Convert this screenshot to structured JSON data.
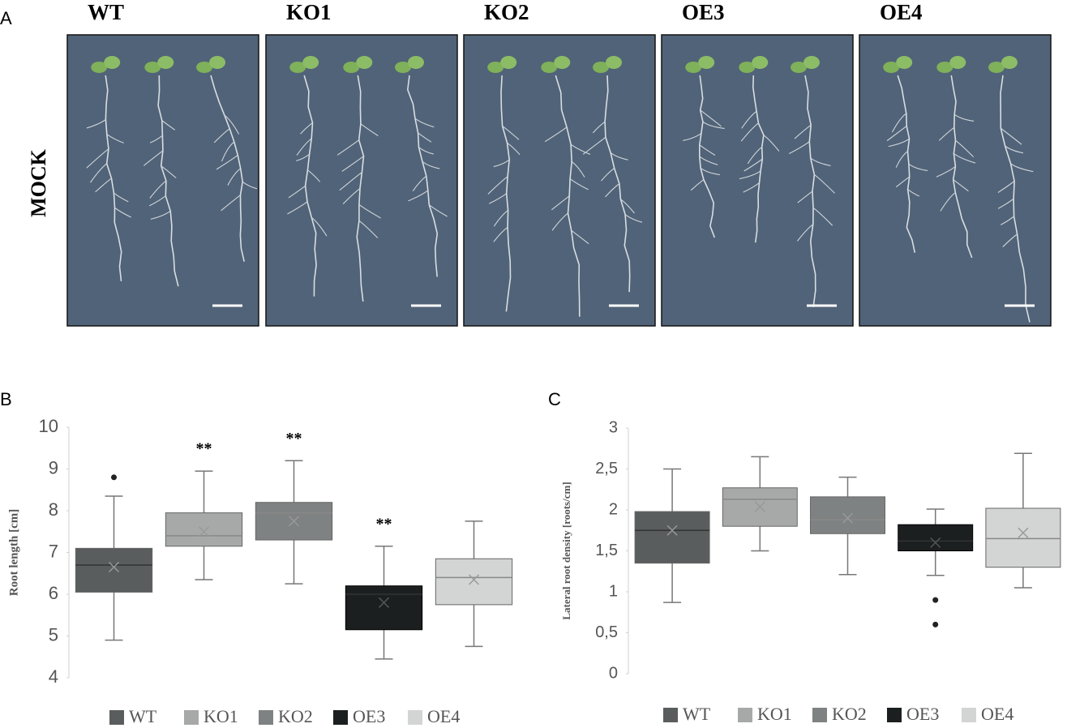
{
  "figure_labels": [
    "A",
    "B",
    "C"
  ],
  "photo_panel": {
    "row_label": "MOCK",
    "columns": [
      "WT",
      "KO1",
      "KO2",
      "OE3",
      "OE4"
    ]
  },
  "chart_data": [
    {
      "type": "box",
      "ylabel": "Root length [cm]",
      "ylim": [
        4,
        10
      ],
      "yticks": [
        4,
        5,
        6,
        7,
        8,
        9,
        10
      ],
      "series": [
        {
          "name": "WT",
          "color": "#5a5d5e",
          "whisker_low": 4.9,
          "q1": 6.05,
          "median": 6.7,
          "mean": 6.65,
          "q3": 7.1,
          "whisker_high": 8.35,
          "outliers": [
            8.8
          ]
        },
        {
          "name": "KO1",
          "color": "#a7a9a9",
          "whisker_low": 6.35,
          "q1": 7.15,
          "median": 7.4,
          "mean": 7.5,
          "q3": 7.95,
          "whisker_high": 8.95,
          "outliers": []
        },
        {
          "name": "KO2",
          "color": "#7f8282",
          "whisker_low": 6.25,
          "q1": 7.3,
          "median": 7.95,
          "mean": 7.75,
          "q3": 8.2,
          "whisker_high": 9.2,
          "outliers": []
        },
        {
          "name": "OE3",
          "color": "#1b1f20",
          "whisker_low": 4.45,
          "q1": 5.15,
          "median": 6.0,
          "mean": 5.8,
          "q3": 6.2,
          "whisker_high": 7.15,
          "outliers": []
        },
        {
          "name": "OE4",
          "color": "#d3d4d4",
          "whisker_low": 4.75,
          "q1": 5.75,
          "median": 6.4,
          "mean": 6.35,
          "q3": 6.85,
          "whisker_high": 7.75,
          "outliers": []
        }
      ],
      "annotations": [
        {
          "series": "KO1",
          "text": "**"
        },
        {
          "series": "KO2",
          "text": "**"
        },
        {
          "series": "OE3",
          "text": "**"
        }
      ]
    },
    {
      "type": "box",
      "ylabel": "Lateral root density [roots/cm]",
      "ylim": [
        0,
        3
      ],
      "yticks": [
        0,
        {
          "value": 0.5,
          "label": "0,5"
        },
        1,
        {
          "value": 1.5,
          "label": "1,5"
        },
        2,
        {
          "value": 2.5,
          "label": "2,5"
        },
        3
      ],
      "series": [
        {
          "name": "WT",
          "color": "#5a5d5e",
          "whisker_low": 0.87,
          "q1": 1.35,
          "median": 1.75,
          "mean": 1.75,
          "q3": 1.98,
          "whisker_high": 2.5,
          "outliers": []
        },
        {
          "name": "KO1",
          "color": "#a7a9a9",
          "whisker_low": 1.5,
          "q1": 1.8,
          "median": 2.13,
          "mean": 2.04,
          "q3": 2.27,
          "whisker_high": 2.65,
          "outliers": []
        },
        {
          "name": "KO2",
          "color": "#7f8282",
          "whisker_low": 1.21,
          "q1": 1.71,
          "median": 1.88,
          "mean": 1.9,
          "q3": 2.16,
          "whisker_high": 2.4,
          "outliers": []
        },
        {
          "name": "OE3",
          "color": "#1b1f20",
          "whisker_low": 1.2,
          "q1": 1.5,
          "median": 1.62,
          "mean": 1.6,
          "q3": 1.82,
          "whisker_high": 2.01,
          "outliers": [
            0.9,
            0.6
          ]
        },
        {
          "name": "OE4",
          "color": "#d3d4d4",
          "whisker_low": 1.05,
          "q1": 1.3,
          "median": 1.65,
          "mean": 1.72,
          "q3": 2.02,
          "whisker_high": 2.69,
          "outliers": []
        }
      ],
      "annotations": []
    }
  ]
}
